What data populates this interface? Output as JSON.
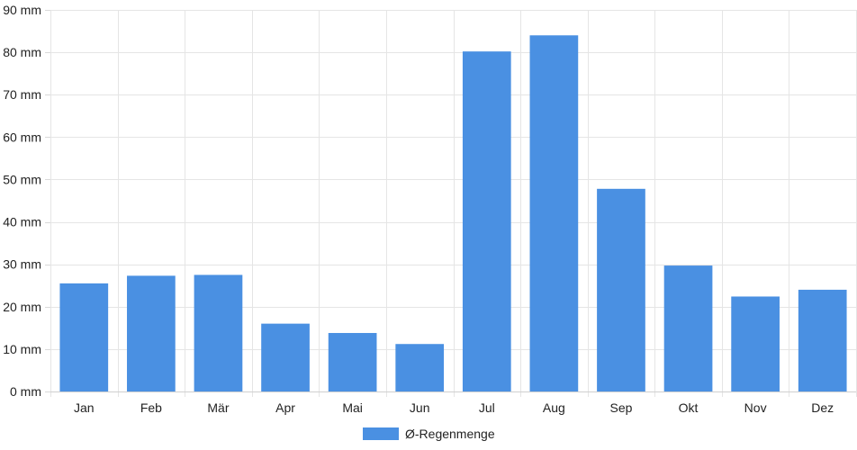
{
  "chart_data": {
    "type": "bar",
    "categories": [
      "Jan",
      "Feb",
      "Mär",
      "Apr",
      "Mai",
      "Jun",
      "Jul",
      "Aug",
      "Sep",
      "Okt",
      "Nov",
      "Dez"
    ],
    "series": [
      {
        "name": "Ø-Regenmenge",
        "values": [
          25.5,
          27.3,
          27.5,
          16.0,
          13.8,
          11.2,
          80.2,
          84.0,
          47.8,
          29.7,
          22.4,
          24.0
        ],
        "color": "#4a90e2"
      }
    ],
    "ylim": [
      0,
      90
    ],
    "y_ticks": [
      0,
      10,
      20,
      30,
      40,
      50,
      60,
      70,
      80,
      90
    ],
    "y_unit": "mm",
    "grid": true,
    "legend": "bottom-center"
  }
}
